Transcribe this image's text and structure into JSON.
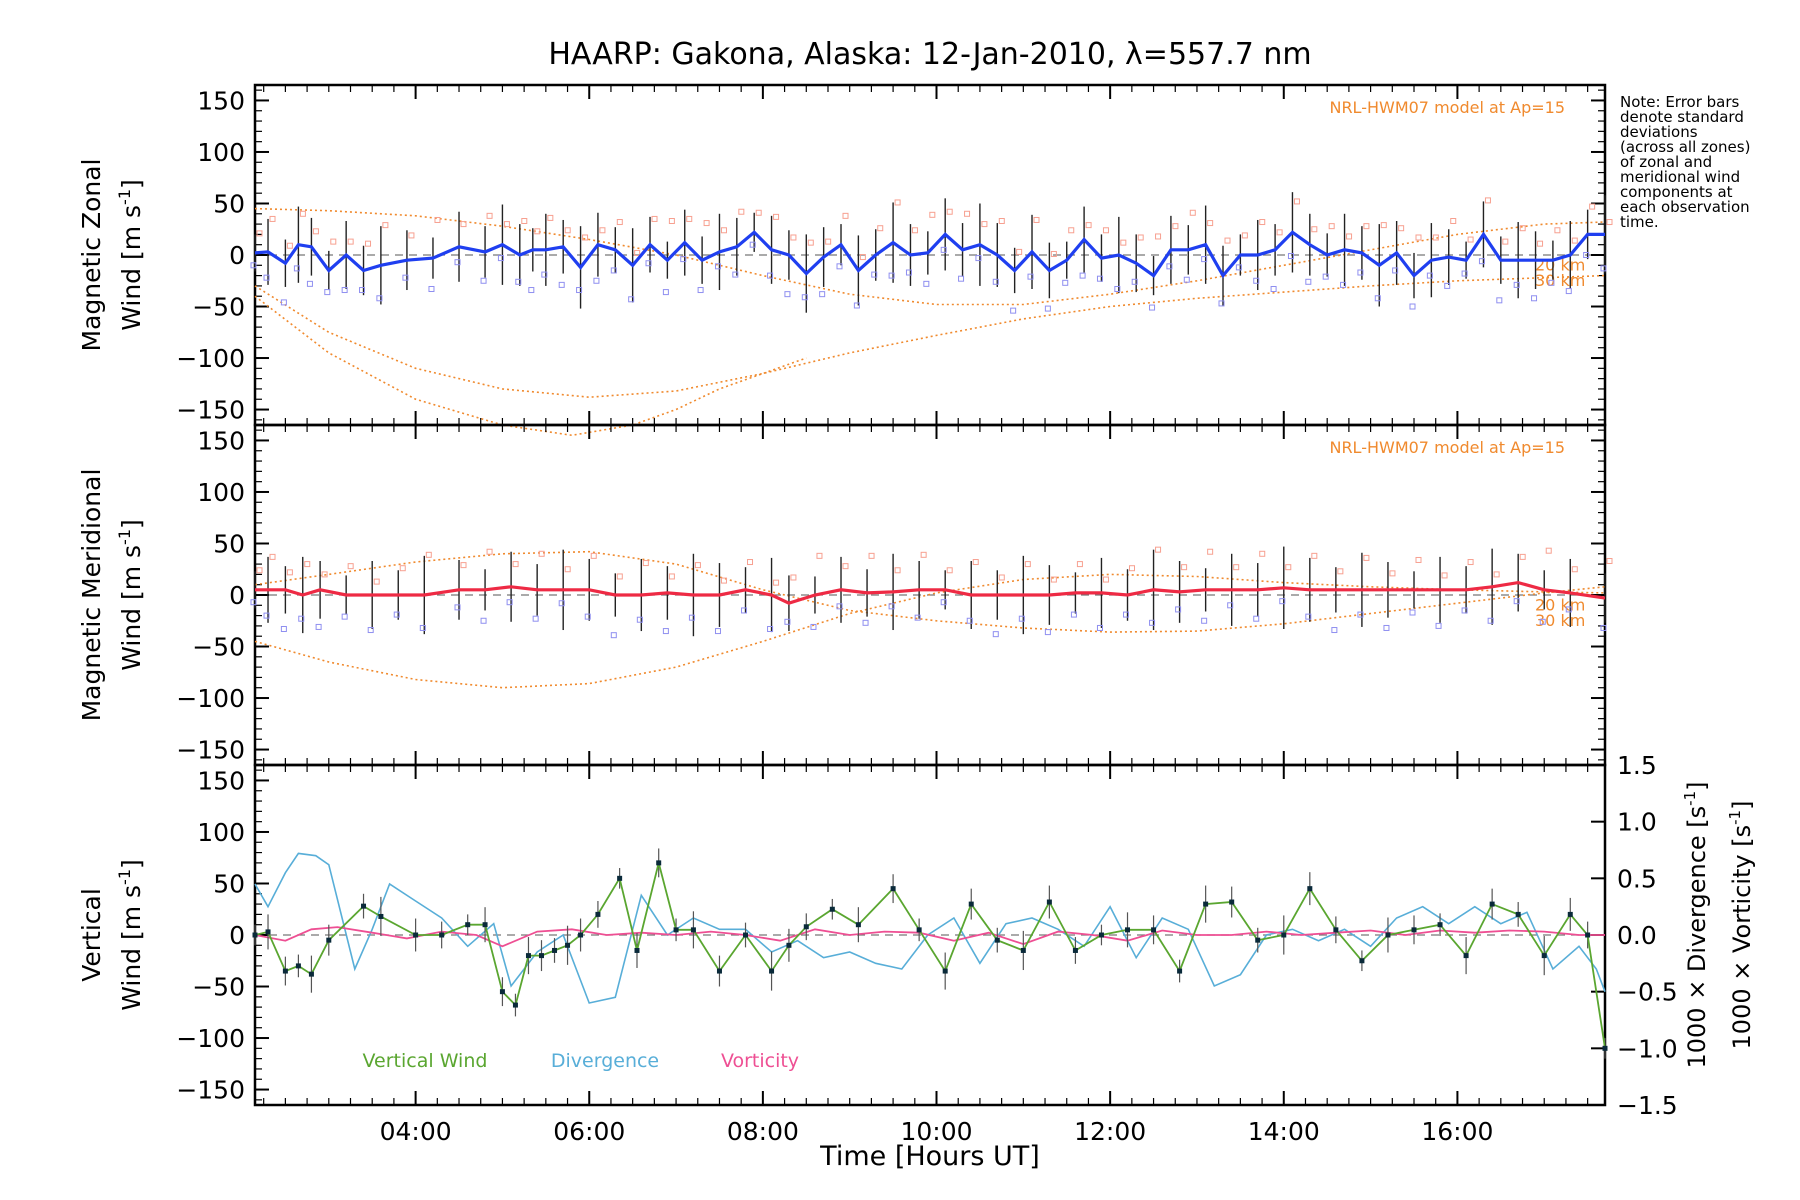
{
  "title": "HAARP: Gakona,  Alaska: 12-Jan-2010, λ=557.7 nm",
  "note": [
    "Note: Error bars",
    "denote standard",
    "deviations",
    "(across all zones)",
    "of zonal and",
    "meridional wind",
    "components at",
    "each observation",
    "time."
  ],
  "xlabel": "Time [Hours UT]",
  "xticks": [
    "04:00",
    "06:00",
    "08:00",
    "10:00",
    "12:00",
    "14:00",
    "16:00"
  ],
  "model_label": "NRL-HWM07 model at Ap=15",
  "alt_labels": [
    "20 km",
    "30 km"
  ],
  "legend": [
    "Vertical Wind",
    "Divergence",
    "Vorticity"
  ],
  "colors": {
    "zonal": "#1f3ff0",
    "meridional": "#ee2a44",
    "vertical": "#5aa630",
    "divergence": "#58aed8",
    "vorticity": "#ee4f93",
    "model": "#f08a2e",
    "zone_points": "#8f8ff0",
    "zone_points_alt": "#f7a090"
  },
  "chart_data": [
    {
      "type": "line",
      "ylabel": [
        "Magnetic Zonal",
        "Wind [m s",
        "-1",
        "]"
      ],
      "xlim": [
        2.15,
        17.7
      ],
      "ylim": [
        -165,
        165
      ],
      "yticks": [
        "150",
        "100",
        "50",
        "0",
        "−50",
        "−100",
        "−150"
      ],
      "series": [
        {
          "x": [
            2.15,
            2.3,
            2.5,
            2.65,
            2.8,
            3.0,
            3.2,
            3.4,
            3.6,
            3.9,
            4.2,
            4.5,
            4.8,
            5.0,
            5.2,
            5.35,
            5.5,
            5.7,
            5.9,
            6.1,
            6.3,
            6.5,
            6.7,
            6.9,
            7.1,
            7.3,
            7.5,
            7.7,
            7.9,
            8.1,
            8.3,
            8.5,
            8.7,
            8.9,
            9.1,
            9.3,
            9.5,
            9.7,
            9.9,
            10.1,
            10.3,
            10.5,
            10.7,
            10.9,
            11.1,
            11.3,
            11.5,
            11.7,
            11.9,
            12.1,
            12.3,
            12.5,
            12.7,
            12.9,
            13.1,
            13.3,
            13.5,
            13.7,
            13.9,
            14.1,
            14.3,
            14.5,
            14.7,
            14.9,
            15.1,
            15.3,
            15.5,
            15.7,
            15.9,
            16.1,
            16.3,
            16.5,
            16.7,
            16.9,
            17.1,
            17.3,
            17.5,
            17.7
          ],
          "y": [
            2,
            3,
            -8,
            10,
            8,
            -15,
            0,
            -15,
            -10,
            -5,
            -3,
            8,
            3,
            10,
            0,
            5,
            5,
            8,
            -12,
            10,
            5,
            -10,
            10,
            -5,
            12,
            -5,
            3,
            8,
            22,
            5,
            0,
            -18,
            -2,
            10,
            -15,
            0,
            12,
            0,
            2,
            20,
            5,
            10,
            0,
            -15,
            3,
            -15,
            -5,
            15,
            -3,
            0,
            -8,
            -20,
            5,
            5,
            10,
            -20,
            0,
            0,
            5,
            22,
            10,
            0,
            5,
            2,
            -10,
            2,
            -20,
            -5,
            -2,
            -5,
            20,
            -5,
            -5,
            -5,
            -5,
            0,
            20,
            20
          ],
          "name": "Magnetic Zonal Wind"
        }
      ],
      "model_curves": [
        {
          "x": [
            2.15,
            3,
            4,
            5,
            6,
            7,
            8,
            9,
            10,
            11,
            12,
            13,
            14,
            15,
            16,
            17,
            17.7
          ],
          "y": [
            45,
            43,
            38,
            28,
            15,
            0,
            -20,
            -38,
            -48,
            -48,
            -38,
            -25,
            -10,
            5,
            20,
            30,
            32
          ]
        },
        {
          "x": [
            2.15,
            3,
            4,
            5,
            6,
            7,
            8,
            9,
            10,
            11,
            12,
            13,
            14,
            15,
            16,
            17,
            17.7
          ],
          "y": [
            -30,
            -75,
            -110,
            -130,
            -138,
            -132,
            -115,
            -95,
            -78,
            -62,
            -50,
            -42,
            -36,
            -30,
            -25,
            -22,
            -20
          ]
        },
        {
          "x": [
            2.15,
            3,
            4,
            5,
            5.8,
            6.5,
            7,
            7.5,
            8,
            8.5
          ],
          "y": [
            -40,
            -95,
            -140,
            -165,
            -175,
            -165,
            -150,
            -130,
            -115,
            -100
          ]
        }
      ]
    },
    {
      "type": "line",
      "ylabel": [
        "Magnetic Meridional",
        "Wind [m s",
        "-1",
        "]"
      ],
      "xlim": [
        2.15,
        17.7
      ],
      "ylim": [
        -165,
        165
      ],
      "yticks": [
        "150",
        "100",
        "50",
        "0",
        "−50",
        "−100",
        "−150"
      ],
      "series": [
        {
          "x": [
            2.15,
            2.3,
            2.5,
            2.7,
            2.9,
            3.2,
            3.5,
            3.8,
            4.1,
            4.5,
            4.8,
            5.1,
            5.4,
            5.7,
            6.0,
            6.3,
            6.6,
            6.9,
            7.2,
            7.5,
            7.8,
            8.1,
            8.3,
            8.6,
            8.9,
            9.2,
            9.5,
            9.8,
            10.1,
            10.4,
            10.7,
            11.0,
            11.3,
            11.6,
            11.9,
            12.2,
            12.5,
            12.8,
            13.1,
            13.4,
            13.7,
            14.0,
            14.3,
            14.6,
            14.9,
            15.2,
            15.5,
            15.8,
            16.1,
            16.4,
            16.7,
            17.0,
            17.3,
            17.7
          ],
          "y": [
            5,
            5,
            5,
            0,
            5,
            0,
            0,
            0,
            0,
            5,
            5,
            8,
            5,
            5,
            5,
            0,
            0,
            2,
            0,
            0,
            5,
            0,
            -8,
            0,
            5,
            2,
            3,
            5,
            5,
            0,
            0,
            0,
            0,
            2,
            2,
            0,
            5,
            3,
            5,
            5,
            5,
            7,
            5,
            5,
            5,
            5,
            5,
            5,
            5,
            8,
            12,
            5,
            2,
            -3
          ],
          "name": "Magnetic Meridional Wind"
        }
      ],
      "model_curves": [
        {
          "x": [
            2.15,
            3,
            4,
            5,
            6,
            7,
            8,
            9,
            10,
            11,
            12,
            13,
            14,
            15,
            16,
            17,
            17.7
          ],
          "y": [
            -45,
            -65,
            -82,
            -90,
            -86,
            -70,
            -45,
            -18,
            2,
            15,
            20,
            18,
            12,
            8,
            5,
            3,
            2
          ]
        },
        {
          "x": [
            2.15,
            3,
            4,
            5,
            6,
            7,
            8,
            9,
            10,
            11,
            12,
            13,
            14,
            15,
            16,
            17,
            17.7
          ],
          "y": [
            10,
            20,
            32,
            40,
            42,
            30,
            5,
            -15,
            -25,
            -32,
            -36,
            -35,
            -28,
            -18,
            -8,
            2,
            8
          ]
        }
      ]
    },
    {
      "type": "line",
      "ylabel": [
        "Vertical",
        "Wind [m s",
        "-1",
        "]"
      ],
      "y2label_div": [
        "1000 × Divergence [s",
        "-1",
        "]"
      ],
      "y2label_vor": [
        "1000 × Vorticity [s",
        "-1",
        "]"
      ],
      "xlim": [
        2.15,
        17.7
      ],
      "ylim": [
        -165,
        165
      ],
      "yticks": [
        "150",
        "100",
        "50",
        "0",
        "−50",
        "−100",
        "−150"
      ],
      "y2lim": [
        -1.5,
        1.5
      ],
      "y2ticks": [
        "1.5",
        "1.0",
        "0.5",
        "0.0",
        "−0.5",
        "−1.0",
        "−1.5"
      ],
      "series": [
        {
          "name": "Vertical Wind",
          "x": [
            2.15,
            2.3,
            2.5,
            2.65,
            2.8,
            3.0,
            3.4,
            3.6,
            4.0,
            4.3,
            4.6,
            4.8,
            5.0,
            5.15,
            5.3,
            5.45,
            5.6,
            5.75,
            5.9,
            6.1,
            6.35,
            6.55,
            6.8,
            7.0,
            7.2,
            7.5,
            7.8,
            8.1,
            8.3,
            8.5,
            8.8,
            9.1,
            9.5,
            9.8,
            10.1,
            10.4,
            10.7,
            11.0,
            11.3,
            11.6,
            11.9,
            12.2,
            12.5,
            12.8,
            13.1,
            13.4,
            13.7,
            14.0,
            14.3,
            14.6,
            14.9,
            15.2,
            15.5,
            15.8,
            16.1,
            16.4,
            16.7,
            17.0,
            17.3,
            17.5,
            17.7
          ],
          "y": [
            0,
            3,
            -35,
            -30,
            -38,
            -5,
            28,
            18,
            0,
            0,
            10,
            10,
            -55,
            -68,
            -20,
            -20,
            -15,
            -10,
            0,
            20,
            55,
            -15,
            70,
            5,
            5,
            -35,
            0,
            -35,
            -10,
            8,
            25,
            10,
            45,
            5,
            -35,
            30,
            -5,
            -15,
            32,
            -15,
            0,
            5,
            5,
            -35,
            30,
            32,
            -5,
            0,
            45,
            5,
            -25,
            0,
            5,
            10,
            -20,
            30,
            20,
            -20,
            20,
            0,
            -110
          ]
        },
        {
          "name": "Divergence",
          "x": [
            2.15,
            2.3,
            2.5,
            2.65,
            2.85,
            3.0,
            3.3,
            3.5,
            3.7,
            4.0,
            4.3,
            4.6,
            4.9,
            5.1,
            5.4,
            5.7,
            6.0,
            6.3,
            6.6,
            6.9,
            7.2,
            7.5,
            7.8,
            8.1,
            8.4,
            8.7,
            9.0,
            9.3,
            9.6,
            9.9,
            10.2,
            10.5,
            10.8,
            11.1,
            11.4,
            11.7,
            12.0,
            12.3,
            12.6,
            12.9,
            13.2,
            13.5,
            13.8,
            14.1,
            14.4,
            14.7,
            15.0,
            15.3,
            15.6,
            15.9,
            16.2,
            16.5,
            16.8,
            17.1,
            17.4,
            17.6,
            17.7
          ],
          "y": [
            0.45,
            0.25,
            0.55,
            0.72,
            0.7,
            0.62,
            -0.3,
            0.05,
            0.45,
            0.3,
            0.15,
            -0.1,
            0.1,
            -0.45,
            -0.15,
            0.0,
            -0.6,
            -0.55,
            0.35,
            0.0,
            0.15,
            0.05,
            0.05,
            -0.15,
            -0.05,
            -0.2,
            -0.15,
            -0.25,
            -0.3,
            0.0,
            0.15,
            -0.25,
            0.1,
            0.15,
            0.05,
            -0.1,
            0.25,
            -0.2,
            0.15,
            0.05,
            -0.45,
            -0.35,
            0.0,
            0.05,
            -0.05,
            0.05,
            -0.1,
            0.15,
            0.25,
            0.1,
            0.25,
            0.1,
            0.2,
            -0.3,
            -0.1,
            -0.3,
            -0.5
          ]
        },
        {
          "name": "Vorticity",
          "x": [
            2.15,
            2.5,
            2.8,
            3.1,
            3.5,
            3.9,
            4.3,
            4.7,
            5.0,
            5.4,
            5.8,
            6.2,
            6.6,
            7.0,
            7.4,
            7.8,
            8.2,
            8.6,
            9.0,
            9.4,
            9.8,
            10.2,
            10.6,
            11.0,
            11.4,
            11.8,
            12.2,
            12.6,
            13.0,
            13.4,
            13.8,
            14.2,
            14.6,
            15.0,
            15.4,
            15.8,
            16.2,
            16.6,
            17.0,
            17.4,
            17.7
          ],
          "y": [
            0.0,
            -0.05,
            0.05,
            0.07,
            0.02,
            -0.03,
            0.03,
            0.0,
            -0.1,
            0.03,
            0.05,
            0.0,
            0.02,
            0.0,
            0.03,
            0.0,
            -0.05,
            0.05,
            0.0,
            0.03,
            0.02,
            -0.05,
            0.02,
            -0.08,
            0.03,
            0.0,
            -0.05,
            0.04,
            0.0,
            0.0,
            0.03,
            0.0,
            0.02,
            0.04,
            0.0,
            0.04,
            0.02,
            0.04,
            0.03,
            0.0,
            0.0
          ]
        }
      ]
    }
  ]
}
